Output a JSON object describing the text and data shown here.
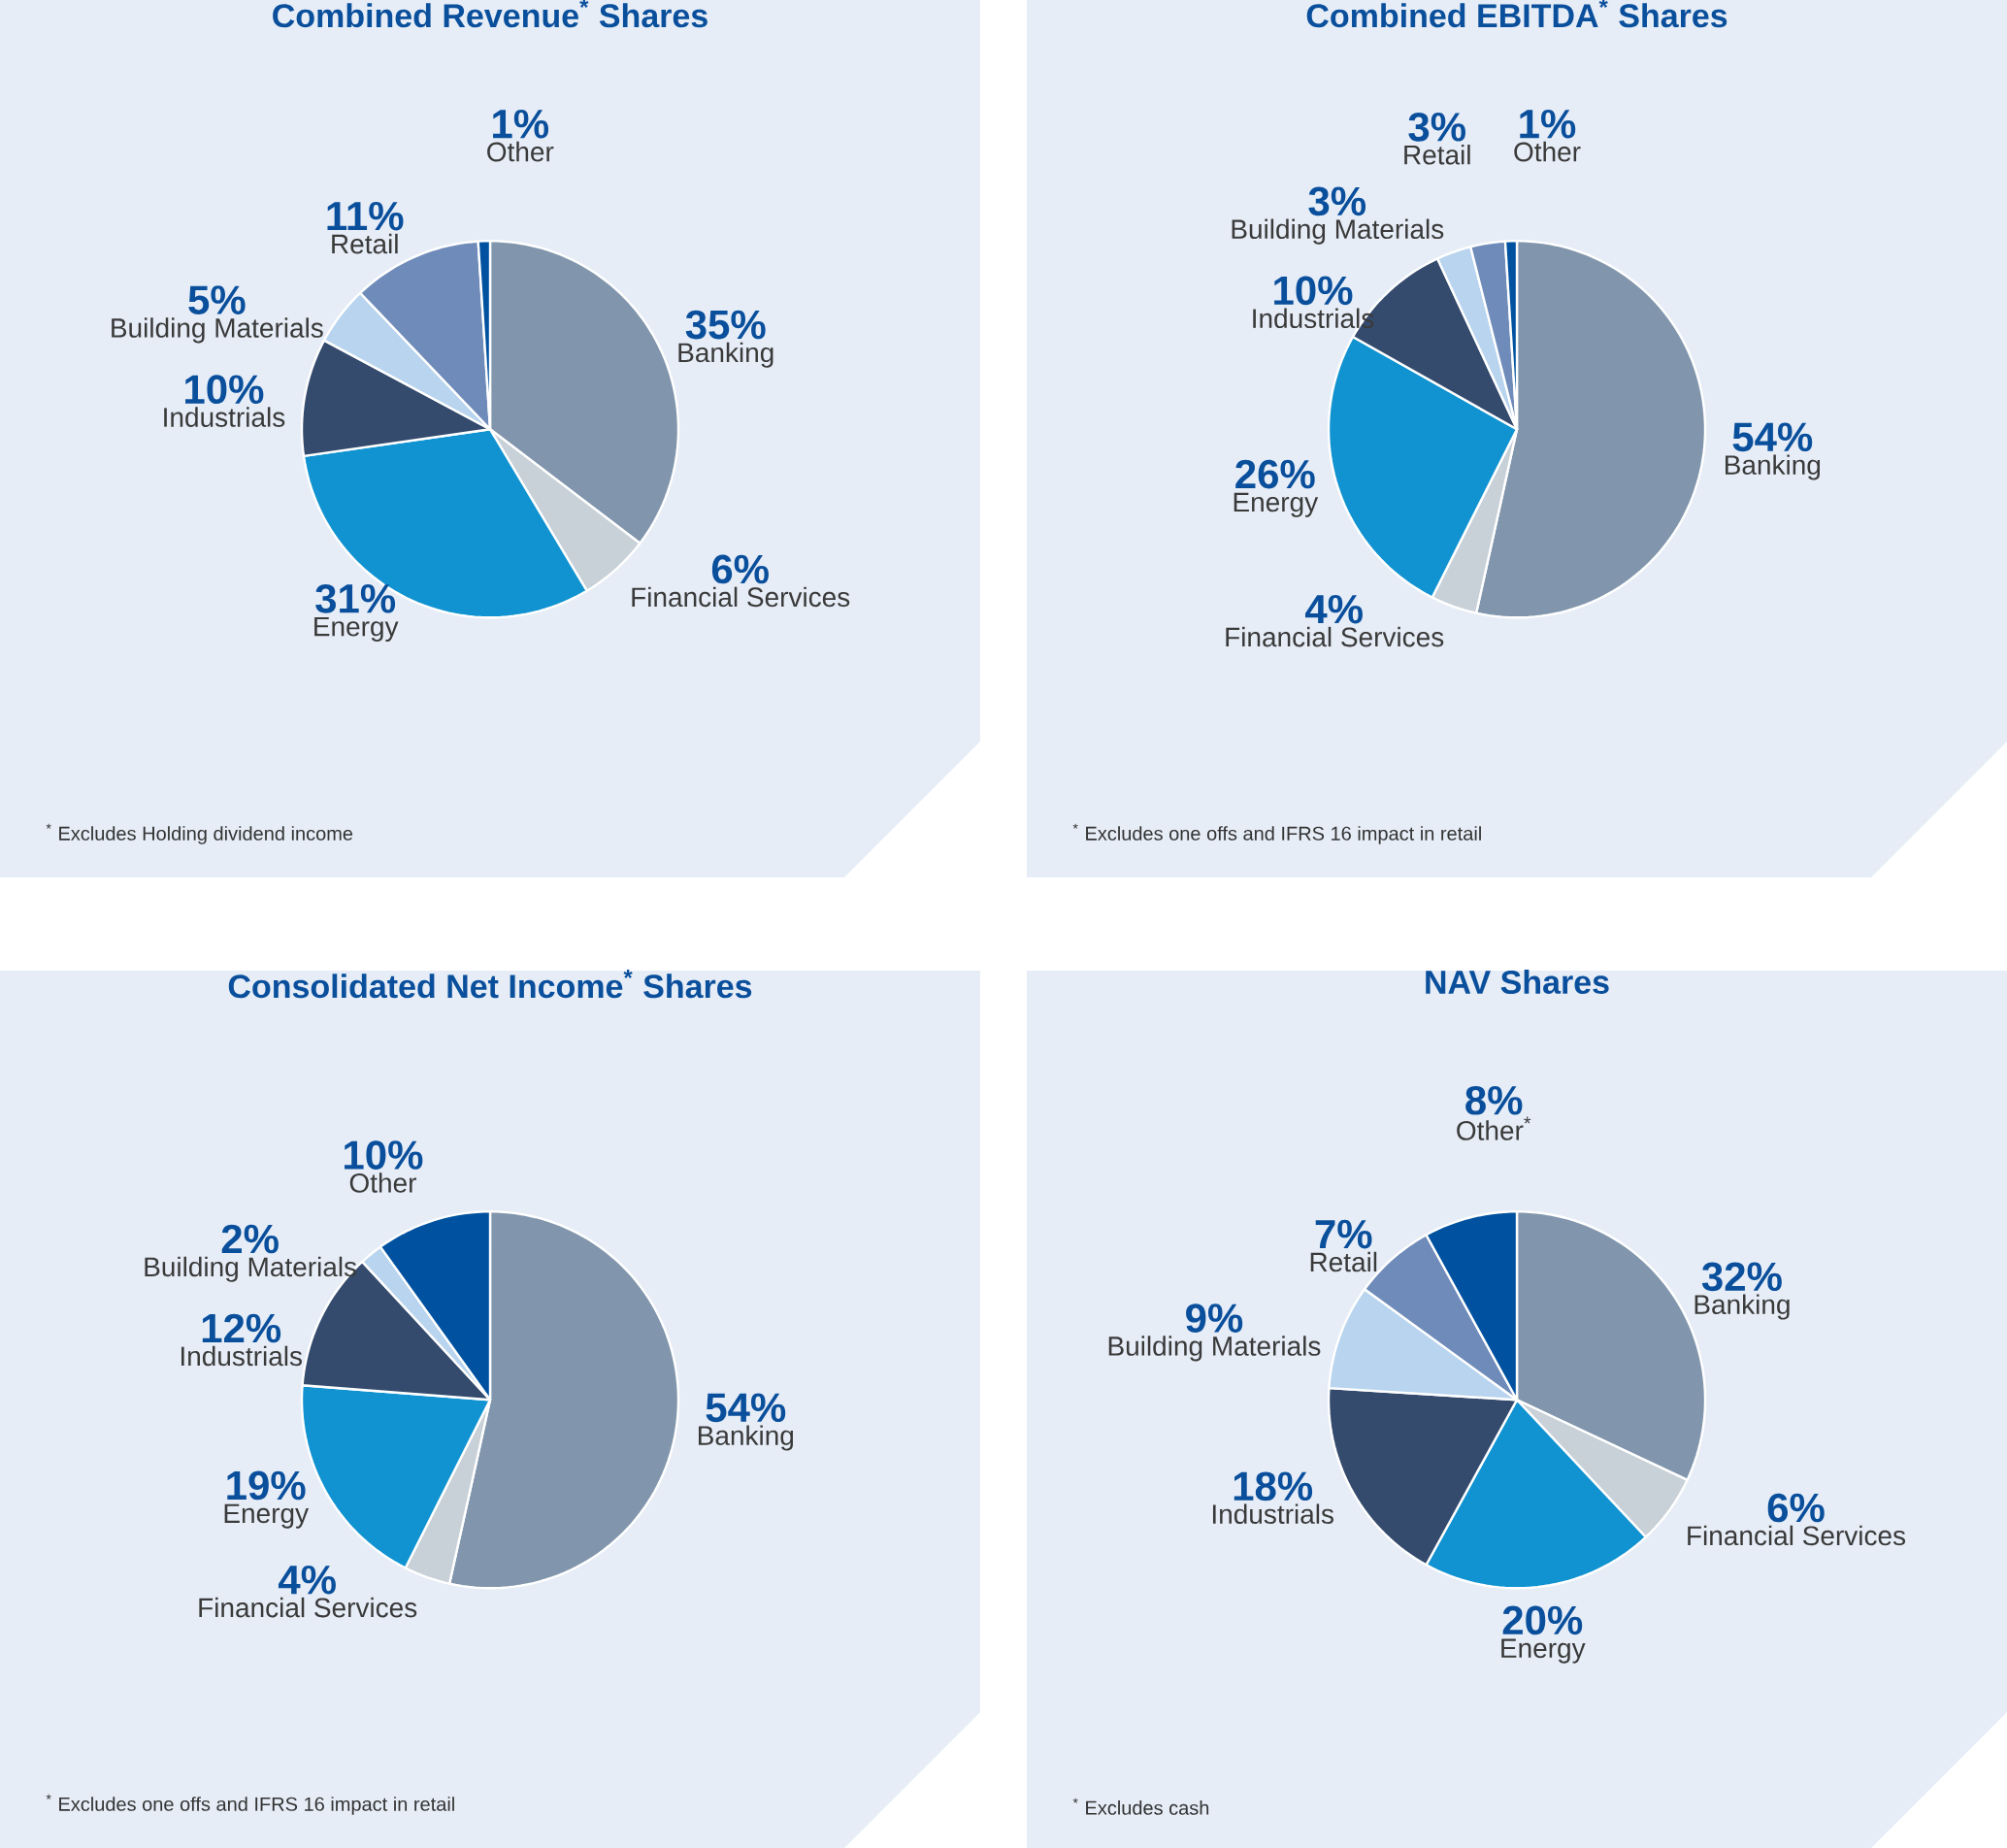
{
  "chart_data": [
    {
      "type": "pie",
      "title": "Combined Revenue$^{*}$ Shares",
      "categories": [
        "Banking",
        "Financial Services",
        "Energy",
        "Industrials",
        "Building Materials",
        "Retail",
        "Other"
      ],
      "values": [
        35,
        6,
        31,
        10,
        5,
        11,
        1
      ],
      "value_labels": [
        "35%",
        "6%",
        "31%",
        "10%",
        "5%",
        "11%",
        "1%"
      ],
      "colors": [
        "#8196ad",
        "#c8d0d8",
        "#1193d1",
        "#344b6e",
        "#b8d4ee",
        "#6f8bba",
        "#0052a0"
      ],
      "annotations": [
        "$^{*}$ Excludes Holding dividend income"
      ]
    },
    {
      "type": "pie",
      "title": "Combined EBITDA$^{*}$ Shares",
      "categories": [
        "Banking",
        "Financial Services",
        "Energy",
        "Industrials",
        "Building Materials",
        "Retail",
        "Other"
      ],
      "values": [
        54,
        4,
        26,
        10,
        3,
        3,
        1
      ],
      "value_labels": [
        "54%",
        "4%",
        "26%",
        "10%",
        "3%",
        "3%",
        "1%"
      ],
      "colors": [
        "#8196ad",
        "#c8d0d8",
        "#1193d1",
        "#344b6e",
        "#b8d4ee",
        "#6f8bba",
        "#0052a0"
      ],
      "annotations": [
        "$^{*}$ Excludes one offs and IFRS 16 impact in retail"
      ]
    },
    {
      "type": "pie",
      "title": "Consolidated Net Income$^{*}$ Shares",
      "categories": [
        "Banking",
        "Financial Services",
        "Energy",
        "Industrials",
        "Building Materials",
        "Other"
      ],
      "values": [
        54,
        4,
        19,
        12,
        2,
        10
      ],
      "value_labels": [
        "54%",
        "4%",
        "19%",
        "12%",
        "2%",
        "10%"
      ],
      "colors": [
        "#8196ad",
        "#c8d0d8",
        "#1193d1",
        "#344b6e",
        "#b8d4ee",
        "#0052a0"
      ],
      "annotations": [
        "$^{*}$ Excludes one offs and IFRS 16 impact in retail"
      ]
    },
    {
      "type": "pie",
      "title": "NAV Shares",
      "categories": [
        "Banking",
        "Financial Services",
        "Energy",
        "Industrials",
        "Building Materials",
        "Retail",
        "Other$^{*}$"
      ],
      "values": [
        32,
        6,
        20,
        18,
        9,
        7,
        8
      ],
      "value_labels": [
        "32%",
        "6%",
        "20%",
        "18%",
        "9%",
        "7%",
        "8%"
      ],
      "colors": [
        "#8196ad",
        "#c8d0d8",
        "#1193d1",
        "#344b6e",
        "#b8d4ee",
        "#6f8bba",
        "#0052a0"
      ],
      "annotations": [
        "$^{*}$ Excludes cash"
      ]
    }
  ]
}
